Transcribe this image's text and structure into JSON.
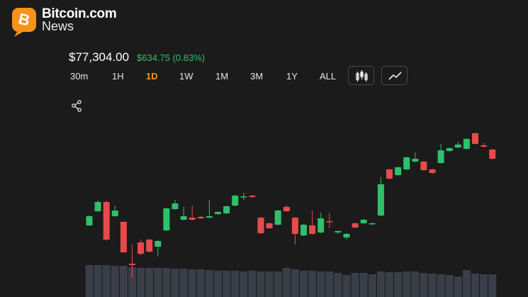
{
  "header": {
    "brand": "Bitcoin.com",
    "sub": "News"
  },
  "price": "$77,304.00",
  "change": "$634.75 (0.83%)",
  "timeframes": [
    "30m",
    "1H",
    "1D",
    "1W",
    "1M",
    "3M",
    "1Y",
    "ALL"
  ],
  "active_timeframe": 2,
  "chart_data": {
    "type": "candlestick",
    "up_color": "#2fc06a",
    "down_color": "#e84a4a",
    "volume_color": "#3a3e48",
    "open": [
      76364,
      76564,
      76694,
      76494,
      76414,
      75824,
      76124,
      76164,
      76064,
      76294,
      76594,
      76444,
      76474,
      76484,
      76474,
      76524,
      76534,
      76644,
      76764,
      76784,
      76474,
      76394,
      76374,
      76624,
      76474,
      76224,
      76364,
      76264,
      76424,
      76264,
      76194,
      76394,
      76394,
      76384,
      76504,
      77154,
      77074,
      77154,
      77264,
      77264,
      77154,
      77244,
      77414,
      77464,
      77444,
      77664,
      77494,
      77434
    ],
    "high": [
      76504,
      76714,
      76714,
      76644,
      76424,
      76094,
      76164,
      76174,
      76154,
      76614,
      76724,
      76624,
      76644,
      76494,
      76724,
      76564,
      76644,
      76794,
      76824,
      76794,
      76484,
      76404,
      76584,
      76654,
      76484,
      76384,
      76574,
      76544,
      76544,
      76294,
      76254,
      76404,
      76454,
      76404,
      77044,
      77164,
      77194,
      77334,
      77394,
      77274,
      77164,
      77514,
      77464,
      77544,
      77594,
      77674,
      77524,
      77444
    ],
    "low": [
      76354,
      76554,
      76144,
      76484,
      75984,
      75624,
      75944,
      75984,
      75924,
      76284,
      76584,
      76434,
      76434,
      76454,
      76464,
      76514,
      76524,
      76634,
      76724,
      76754,
      76244,
      76314,
      76364,
      76554,
      76094,
      76214,
      76234,
      76254,
      76324,
      76244,
      76164,
      76324,
      76384,
      76374,
      76494,
      77014,
      77064,
      77144,
      77254,
      77134,
      77094,
      77234,
      77404,
      77454,
      77434,
      77504,
      77464,
      77294
    ],
    "close": [
      76494,
      76694,
      76164,
      76574,
      75984,
      75804,
      75964,
      75994,
      76144,
      76604,
      76674,
      76494,
      76444,
      76464,
      76494,
      76554,
      76634,
      76784,
      76774,
      76764,
      76254,
      76324,
      76574,
      76564,
      76244,
      76374,
      76244,
      76464,
      76414,
      76284,
      76244,
      76334,
      76444,
      76394,
      76944,
      77024,
      77184,
      77324,
      77304,
      77144,
      77104,
      77424,
      77454,
      77504,
      77584,
      77514,
      77474,
      77304
    ],
    "volume": [
      45,
      45,
      45,
      44,
      44,
      42,
      41,
      41,
      41,
      41,
      40,
      40,
      39,
      39,
      38,
      37,
      37,
      37,
      36,
      37,
      36,
      36,
      36,
      41,
      39,
      37,
      37,
      36,
      36,
      34,
      31,
      34,
      34,
      32,
      36,
      35,
      35,
      36,
      36,
      34,
      33,
      32,
      31,
      29,
      38,
      33,
      32,
      32
    ]
  }
}
